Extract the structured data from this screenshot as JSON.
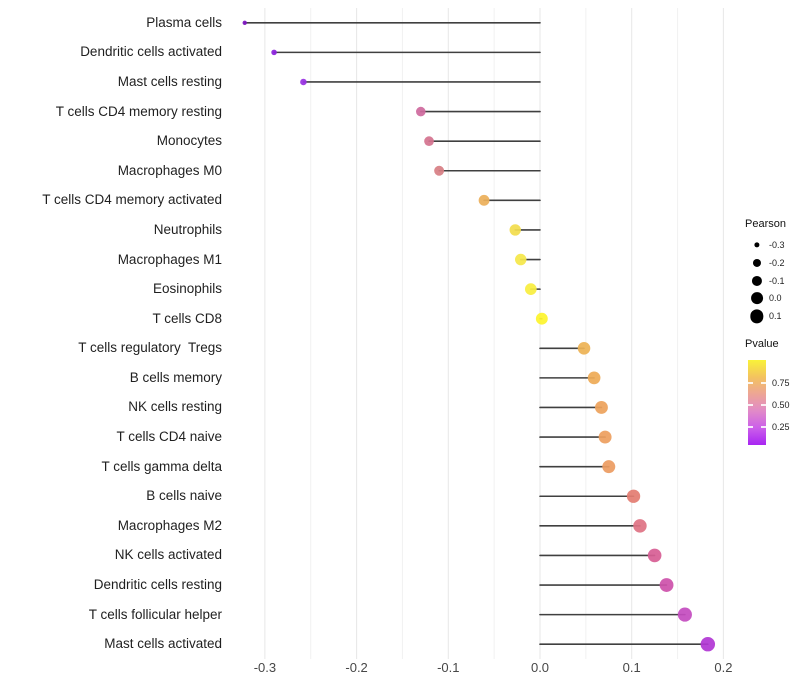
{
  "chart_data": {
    "type": "lollipop",
    "title": "",
    "xlabel": "",
    "ylabel": "",
    "x_ticks": [
      {
        "label": "-0.3",
        "value": -0.3
      },
      {
        "label": "-0.2",
        "value": -0.2
      },
      {
        "label": "-0.1",
        "value": -0.1
      },
      {
        "label": "0.0",
        "value": 0.0
      },
      {
        "label": "0.1",
        "value": 0.1
      },
      {
        "label": "0.2",
        "value": 0.2
      }
    ],
    "xlim": [
      -0.347,
      0.212
    ],
    "grid": {
      "minor_step": 0.05,
      "from": -0.3,
      "to": 0.2
    },
    "rows": [
      {
        "label": "Plasma cells",
        "pearson": -0.322,
        "dot_color": "#7d14c0"
      },
      {
        "label": "Dendritic cells activated",
        "pearson": -0.29,
        "dot_color": "#8c22dd"
      },
      {
        "label": "Mast cells resting",
        "pearson": -0.258,
        "dot_color": "#9933e3"
      },
      {
        "label": "T cells CD4 memory resting",
        "pearson": -0.13,
        "dot_color": "#cf6a9e"
      },
      {
        "label": "Monocytes",
        "pearson": -0.121,
        "dot_color": "#d4738f"
      },
      {
        "label": "Macrophages M0",
        "pearson": -0.11,
        "dot_color": "#d77f84"
      },
      {
        "label": "T cells CD4 memory activated",
        "pearson": -0.061,
        "dot_color": "#ecaf5a"
      },
      {
        "label": "Neutrophils",
        "pearson": -0.027,
        "dot_color": "#f2dd4e"
      },
      {
        "label": "Macrophages M1",
        "pearson": -0.021,
        "dot_color": "#f5e74a"
      },
      {
        "label": "Eosinophils",
        "pearson": -0.01,
        "dot_color": "#f9ee3f"
      },
      {
        "label": "T cells CD8",
        "pearson": 0.002,
        "dot_color": "#fdf42e"
      },
      {
        "label": "T cells regulatory  Tregs",
        "pearson": 0.048,
        "dot_color": "#edb355"
      },
      {
        "label": "B cells memory",
        "pearson": 0.059,
        "dot_color": "#eeab57"
      },
      {
        "label": "NK cells resting",
        "pearson": 0.067,
        "dot_color": "#eda35c"
      },
      {
        "label": "T cells CD4 naive",
        "pearson": 0.071,
        "dot_color": "#ed9f60"
      },
      {
        "label": "T cells gamma delta",
        "pearson": 0.075,
        "dot_color": "#ec9c62"
      },
      {
        "label": "B cells naive",
        "pearson": 0.102,
        "dot_color": "#e37d72"
      },
      {
        "label": "Macrophages M2",
        "pearson": 0.109,
        "dot_color": "#df7384"
      },
      {
        "label": "NK cells activated",
        "pearson": 0.125,
        "dot_color": "#d75f95"
      },
      {
        "label": "Dendritic cells resting",
        "pearson": 0.138,
        "dot_color": "#cd52ab"
      },
      {
        "label": "T cells follicular helper",
        "pearson": 0.158,
        "dot_color": "#c44cc0"
      },
      {
        "label": "Mast cells activated",
        "pearson": 0.183,
        "dot_color": "#b138d4"
      }
    ],
    "legend": {
      "pearson_size": {
        "title": "Pearson",
        "dot_color": "#000000",
        "entries": [
          {
            "label": "-0.3",
            "value": -0.3
          },
          {
            "label": "-0.2",
            "value": -0.2
          },
          {
            "label": "-0.1",
            "value": -0.1
          },
          {
            "label": "0.0",
            "value": 0.0
          },
          {
            "label": "0.1",
            "value": 0.1
          }
        ]
      },
      "pvalue_color": {
        "title": "Pvalue",
        "tick_labels": [
          "0.75",
          "0.50",
          "0.25"
        ],
        "gradient_top_to_bottom": [
          "#f9f239",
          "#f3c35f",
          "#eda596",
          "#e18ac8",
          "#cb5fea",
          "#a825f2"
        ]
      }
    },
    "style_colors": {
      "stem": "#404040",
      "grid_major": "#e7e7e7",
      "grid_minor": "#f1f1f1",
      "background": "#ffffff"
    }
  }
}
